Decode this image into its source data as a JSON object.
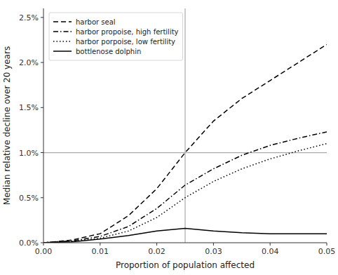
{
  "chart_data": {
    "type": "line",
    "xlabel": "Proportion of population affected",
    "ylabel": "Median relative decline over 20 years",
    "x": [
      0.0,
      0.001,
      0.005,
      0.01,
      0.015,
      0.02,
      0.025,
      0.03,
      0.035,
      0.04,
      0.045,
      0.05
    ],
    "series": [
      {
        "name": "harbor seal",
        "color": "#000000",
        "line_style": "dashed",
        "values": [
          0.0,
          5e-05,
          0.0003,
          0.001,
          0.003,
          0.006,
          0.01,
          0.0135,
          0.016,
          0.018,
          0.02,
          0.022
        ]
      },
      {
        "name": "harbor propoise, high fertility",
        "color": "#000000",
        "line_style": "dashdot",
        "values": [
          0.0,
          5e-05,
          0.0002,
          0.0007,
          0.0018,
          0.0038,
          0.0064,
          0.0082,
          0.0097,
          0.0108,
          0.0116,
          0.0123
        ]
      },
      {
        "name": "harbor porpoise, low fertility",
        "color": "#000000",
        "line_style": "dotted",
        "values": [
          0.0,
          5e-05,
          0.00015,
          0.0005,
          0.0013,
          0.0028,
          0.005,
          0.0068,
          0.0082,
          0.0093,
          0.0102,
          0.011
        ]
      },
      {
        "name": "bottlenose dolphin",
        "color": "#000000",
        "line_style": "solid",
        "values": [
          0.0,
          3e-05,
          0.0001,
          0.0004,
          0.0008,
          0.0013,
          0.0016,
          0.0013,
          0.0011,
          0.001,
          0.001,
          0.001
        ]
      }
    ],
    "reference_lines": [
      {
        "axis": "y",
        "value": 0.01,
        "color": "#aaaaaa"
      },
      {
        "axis": "x",
        "value": 0.025,
        "color": "#aaaaaa"
      }
    ],
    "xlim": [
      0.0,
      0.05
    ],
    "ylim": [
      0.0,
      0.026
    ],
    "xticks": [
      {
        "value": 0.0,
        "label": "0.00"
      },
      {
        "value": 0.01,
        "label": "0.01"
      },
      {
        "value": 0.02,
        "label": "0.02"
      },
      {
        "value": 0.03,
        "label": "0.03"
      },
      {
        "value": 0.04,
        "label": "0.04"
      },
      {
        "value": 0.05,
        "label": "0.05"
      }
    ],
    "yticks": [
      {
        "value": 0.0,
        "label": "0.0%"
      },
      {
        "value": 0.005,
        "label": "0.5%"
      },
      {
        "value": 0.01,
        "label": "1.0%"
      },
      {
        "value": 0.015,
        "label": "1.5%"
      },
      {
        "value": 0.02,
        "label": "2.0%"
      },
      {
        "value": 0.025,
        "label": "2.5%"
      }
    ],
    "grid": false,
    "legend": "upper left"
  }
}
